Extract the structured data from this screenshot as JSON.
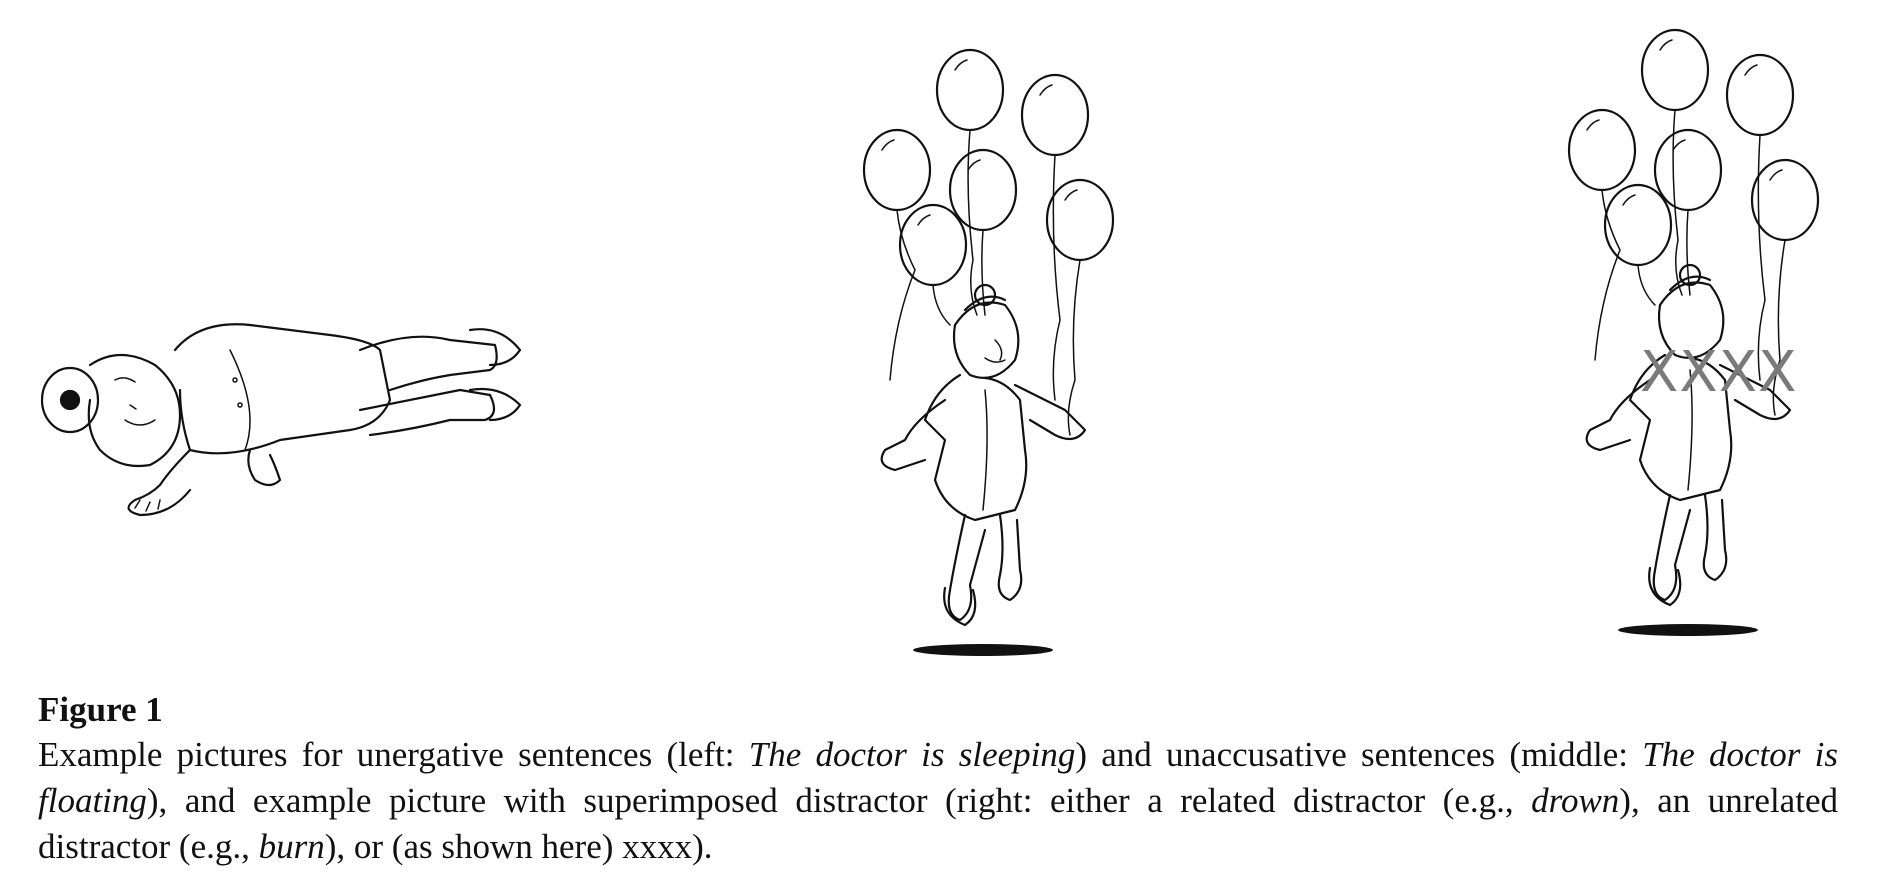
{
  "figure": {
    "distractor_text": "XXXX",
    "caption": {
      "label": "Figure 1",
      "seg1": "Example pictures for unergative sentences (left: ",
      "ex_left": "The doctor is sleeping",
      "seg2": ") and unaccusative sentences (middle: ",
      "ex_middle": "The doctor is floating",
      "seg3": "), and example picture with superimposed distractor (right: either a related distractor (e.g., ",
      "ex_related": "drown",
      "seg4": "), an unrelated distractor (e.g., ",
      "ex_unrelated": "burn",
      "seg5": "), or (as shown here) xxxx)."
    }
  }
}
